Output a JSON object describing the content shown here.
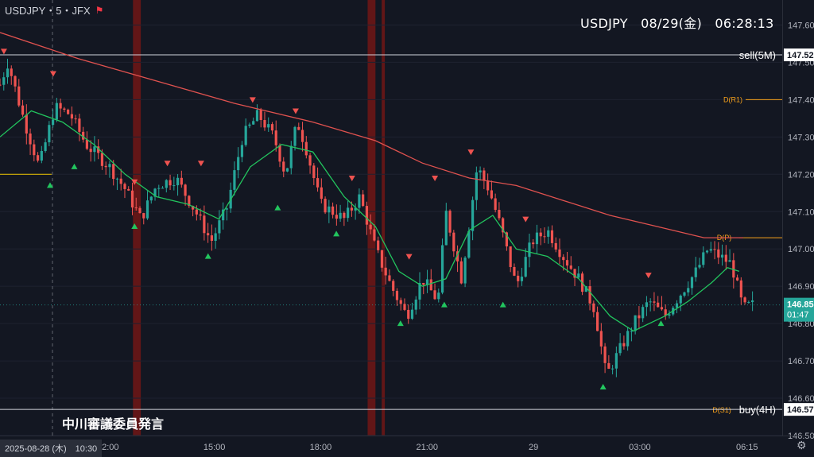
{
  "header": {
    "symbol_line": "USDJPY・5・JFX",
    "flag_icon": "red-flag-icon"
  },
  "clock": {
    "text": "USDJPY　08/29(金)　06:28:13"
  },
  "annotation_note": "中川審議委員発言",
  "date_badge": "2025-08-28 (木)　10:30",
  "settings_icon": "gear-icon",
  "colors": {
    "background": "#131722",
    "up": "#26a69a",
    "down": "#ef5350",
    "ma_long": "#e0524f",
    "ma_short": "#22c55e",
    "pivot_orange": "#f7a21b",
    "event_band": "#6b1616"
  },
  "chart_data": {
    "type": "candlestick",
    "symbol": "USDJPY",
    "timeframe": "5",
    "ylim": [
      146.5,
      147.65
    ],
    "y_ticks": [
      147.6,
      147.5,
      147.4,
      147.3,
      147.2,
      147.1,
      147.0,
      146.9,
      146.8,
      146.7,
      146.6,
      146.5
    ],
    "y_tick_labels": [
      "147.60",
      "147.50",
      "147.40",
      "147.30",
      "147.20",
      "147.10",
      "147.00",
      "146.90",
      "146.80",
      "146.70",
      "146.60",
      "146.50"
    ],
    "x_labels": [
      {
        "label": "12:00",
        "t": 0.138
      },
      {
        "label": "15:00",
        "t": 0.274
      },
      {
        "label": "18:00",
        "t": 0.41
      },
      {
        "label": "21:00",
        "t": 0.546
      },
      {
        "label": "29",
        "t": 0.682
      },
      {
        "label": "03:00",
        "t": 0.818
      },
      {
        "label": "06:15",
        "t": 0.955
      }
    ],
    "close_path": [
      [
        0.0,
        147.44
      ],
      [
        0.01,
        147.5
      ],
      [
        0.03,
        147.35
      ],
      [
        0.05,
        147.22
      ],
      [
        0.07,
        147.38
      ],
      [
        0.09,
        147.36
      ],
      [
        0.11,
        147.28
      ],
      [
        0.14,
        147.22
      ],
      [
        0.16,
        147.16
      ],
      [
        0.18,
        147.08
      ],
      [
        0.2,
        147.17
      ],
      [
        0.225,
        147.19
      ],
      [
        0.25,
        147.1
      ],
      [
        0.27,
        147.02
      ],
      [
        0.29,
        147.11
      ],
      [
        0.31,
        147.3
      ],
      [
        0.33,
        147.36
      ],
      [
        0.35,
        147.3
      ],
      [
        0.365,
        147.2
      ],
      [
        0.38,
        147.34
      ],
      [
        0.39,
        147.28
      ],
      [
        0.41,
        147.12
      ],
      [
        0.44,
        147.08
      ],
      [
        0.46,
        147.14
      ],
      [
        0.48,
        147.0
      ],
      [
        0.5,
        146.9
      ],
      [
        0.52,
        146.82
      ],
      [
        0.54,
        146.92
      ],
      [
        0.56,
        146.86
      ],
      [
        0.57,
        147.1
      ],
      [
        0.59,
        146.92
      ],
      [
        0.61,
        147.22
      ],
      [
        0.625,
        147.16
      ],
      [
        0.64,
        147.06
      ],
      [
        0.66,
        146.9
      ],
      [
        0.68,
        147.02
      ],
      [
        0.7,
        147.05
      ],
      [
        0.72,
        146.98
      ],
      [
        0.74,
        146.92
      ],
      [
        0.76,
        146.84
      ],
      [
        0.775,
        146.66
      ],
      [
        0.79,
        146.72
      ],
      [
        0.81,
        146.8
      ],
      [
        0.83,
        146.86
      ],
      [
        0.85,
        146.82
      ],
      [
        0.87,
        146.88
      ],
      [
        0.89,
        146.94
      ],
      [
        0.905,
        147.0
      ],
      [
        0.92,
        146.98
      ],
      [
        0.935,
        146.96
      ],
      [
        0.95,
        146.84
      ],
      [
        0.96,
        146.85
      ]
    ],
    "ma_long": [
      [
        0.0,
        147.58
      ],
      [
        0.1,
        147.51
      ],
      [
        0.2,
        147.45
      ],
      [
        0.3,
        147.39
      ],
      [
        0.4,
        147.34
      ],
      [
        0.48,
        147.29
      ],
      [
        0.54,
        147.23
      ],
      [
        0.6,
        147.19
      ],
      [
        0.66,
        147.17
      ],
      [
        0.72,
        147.13
      ],
      [
        0.78,
        147.09
      ],
      [
        0.84,
        147.06
      ],
      [
        0.9,
        147.03
      ],
      [
        0.95,
        147.03
      ]
    ],
    "ma_short": [
      [
        0.0,
        147.3
      ],
      [
        0.04,
        147.37
      ],
      [
        0.08,
        147.34
      ],
      [
        0.12,
        147.28
      ],
      [
        0.16,
        147.2
      ],
      [
        0.2,
        147.14
      ],
      [
        0.24,
        147.12
      ],
      [
        0.28,
        147.08
      ],
      [
        0.32,
        147.22
      ],
      [
        0.36,
        147.28
      ],
      [
        0.4,
        147.26
      ],
      [
        0.44,
        147.14
      ],
      [
        0.48,
        147.06
      ],
      [
        0.51,
        146.94
      ],
      [
        0.54,
        146.9
      ],
      [
        0.57,
        146.92
      ],
      [
        0.6,
        147.05
      ],
      [
        0.63,
        147.09
      ],
      [
        0.66,
        147.0
      ],
      [
        0.7,
        146.98
      ],
      [
        0.74,
        146.92
      ],
      [
        0.78,
        146.82
      ],
      [
        0.81,
        146.78
      ],
      [
        0.85,
        146.82
      ],
      [
        0.88,
        146.86
      ],
      [
        0.91,
        146.91
      ],
      [
        0.93,
        146.95
      ],
      [
        0.945,
        146.94
      ]
    ],
    "up_markers": [
      [
        0.064,
        147.17
      ],
      [
        0.095,
        147.22
      ],
      [
        0.172,
        147.06
      ],
      [
        0.266,
        146.98
      ],
      [
        0.355,
        147.11
      ],
      [
        0.43,
        147.04
      ],
      [
        0.512,
        146.8
      ],
      [
        0.568,
        146.85
      ],
      [
        0.643,
        146.85
      ],
      [
        0.771,
        146.63
      ],
      [
        0.845,
        146.8
      ]
    ],
    "down_markers": [
      [
        0.005,
        147.53
      ],
      [
        0.068,
        147.47
      ],
      [
        0.172,
        147.18
      ],
      [
        0.214,
        147.23
      ],
      [
        0.257,
        147.23
      ],
      [
        0.323,
        147.4
      ],
      [
        0.378,
        147.37
      ],
      [
        0.45,
        147.19
      ],
      [
        0.523,
        146.98
      ],
      [
        0.556,
        147.19
      ],
      [
        0.602,
        147.26
      ],
      [
        0.672,
        147.08
      ],
      [
        0.829,
        146.93
      ]
    ],
    "event_bands": [
      {
        "t": 0.17,
        "width_t": 0.01
      },
      {
        "t": 0.47,
        "width_t": 0.01
      },
      {
        "t": 0.488,
        "width_t": 0.004
      }
    ],
    "levels": [
      {
        "name": "sell(5M)",
        "value": 147.52,
        "label": "147.52",
        "style": "white"
      },
      {
        "name": "D(R1)",
        "value": 147.4,
        "style": "orange"
      },
      {
        "name": "D(P)",
        "value": 147.03,
        "style": "orange"
      },
      {
        "name": "D(S1)",
        "value": 146.57,
        "style": "orange"
      },
      {
        "name": "buy(4H)",
        "value": 146.57,
        "label": "146.57",
        "style": "white"
      }
    ],
    "yellow_level": {
      "value": 147.2,
      "t_end": 0.066
    },
    "current_price": {
      "label": "146.85",
      "countdown": "01:47",
      "value": 146.85
    }
  }
}
